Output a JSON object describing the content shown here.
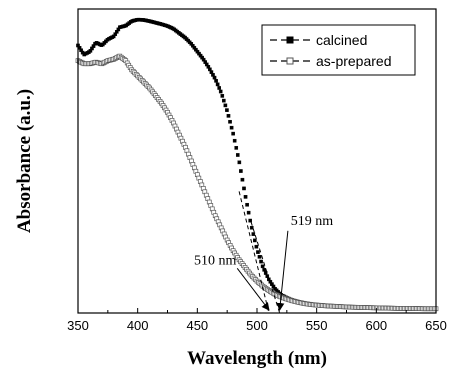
{
  "chart_data": {
    "type": "scatter",
    "xlabel": "Wavelength (nm)",
    "ylabel": "Absorbance (a.u.)",
    "xlim": [
      350,
      650
    ],
    "ylim": [
      0,
      1
    ],
    "xticks": [
      350,
      400,
      450,
      500,
      550,
      600,
      650
    ],
    "yticks_shown": false,
    "grid": false,
    "legend_position": "top-right",
    "series": [
      {
        "name": "calcined",
        "marker": "filled-square",
        "color": "#000000",
        "x": [
          350,
          355,
          360,
          365,
          370,
          375,
          380,
          385,
          390,
          395,
          400,
          405,
          410,
          415,
          420,
          425,
          430,
          435,
          440,
          445,
          450,
          455,
          460,
          465,
          470,
          475,
          480,
          485,
          490,
          495,
          500,
          505,
          510,
          515,
          520,
          525,
          530,
          535,
          540,
          545,
          550,
          560,
          570,
          580,
          590,
          600,
          610,
          620,
          630,
          640,
          650
        ],
        "y": [
          0.88,
          0.85,
          0.86,
          0.89,
          0.88,
          0.9,
          0.91,
          0.94,
          0.945,
          0.96,
          0.965,
          0.964,
          0.96,
          0.955,
          0.95,
          0.944,
          0.935,
          0.92,
          0.905,
          0.885,
          0.86,
          0.835,
          0.805,
          0.77,
          0.725,
          0.665,
          0.59,
          0.5,
          0.39,
          0.29,
          0.21,
          0.15,
          0.11,
          0.08,
          0.06,
          0.05,
          0.042,
          0.036,
          0.032,
          0.029,
          0.027,
          0.024,
          0.022,
          0.02,
          0.019,
          0.018,
          0.017,
          0.016,
          0.016,
          0.015,
          0.015
        ]
      },
      {
        "name": "as-prepared",
        "marker": "open-square",
        "color": "#555555",
        "x": [
          350,
          355,
          360,
          365,
          370,
          375,
          380,
          385,
          390,
          395,
          400,
          405,
          410,
          415,
          420,
          425,
          430,
          435,
          440,
          445,
          450,
          455,
          460,
          465,
          470,
          475,
          480,
          485,
          490,
          495,
          500,
          505,
          510,
          515,
          520,
          525,
          530,
          535,
          540,
          545,
          550,
          560,
          570,
          580,
          590,
          600,
          610,
          620,
          630,
          640,
          650
        ],
        "y": [
          0.83,
          0.82,
          0.82,
          0.825,
          0.82,
          0.83,
          0.835,
          0.845,
          0.83,
          0.8,
          0.78,
          0.76,
          0.74,
          0.715,
          0.69,
          0.66,
          0.625,
          0.585,
          0.545,
          0.5,
          0.455,
          0.41,
          0.365,
          0.32,
          0.28,
          0.24,
          0.205,
          0.175,
          0.15,
          0.125,
          0.105,
          0.088,
          0.074,
          0.062,
          0.053,
          0.046,
          0.04,
          0.035,
          0.031,
          0.028,
          0.026,
          0.023,
          0.021,
          0.019,
          0.018,
          0.017,
          0.016,
          0.015,
          0.015,
          0.014,
          0.014
        ]
      }
    ],
    "annotations": [
      {
        "text": "510 nm",
        "x": 510,
        "label_x": 465,
        "label_y": 0.16
      },
      {
        "text": "519 nm",
        "x": 519,
        "label_x": 546,
        "label_y": 0.29
      }
    ]
  }
}
